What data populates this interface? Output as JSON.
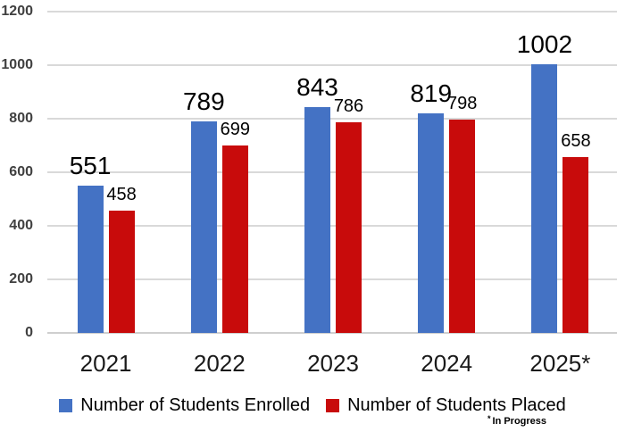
{
  "chart_data": {
    "type": "bar",
    "categories": [
      "2021",
      "2022",
      "2023",
      "2024",
      "2025*"
    ],
    "series": [
      {
        "name": "Number of Students Enrolled",
        "color": "#4472C4",
        "values": [
          551,
          789,
          843,
          819,
          1002
        ]
      },
      {
        "name": "Number of Students Placed",
        "color": "#C80B0B",
        "values": [
          458,
          699,
          786,
          798,
          658
        ]
      }
    ],
    "ylim": [
      0,
      1200
    ],
    "yticks": [
      0,
      200,
      400,
      600,
      800,
      1000,
      1200
    ],
    "grid": true,
    "legend_position": "bottom",
    "footnote_marker": "*",
    "footnote_text": "In Progress"
  }
}
